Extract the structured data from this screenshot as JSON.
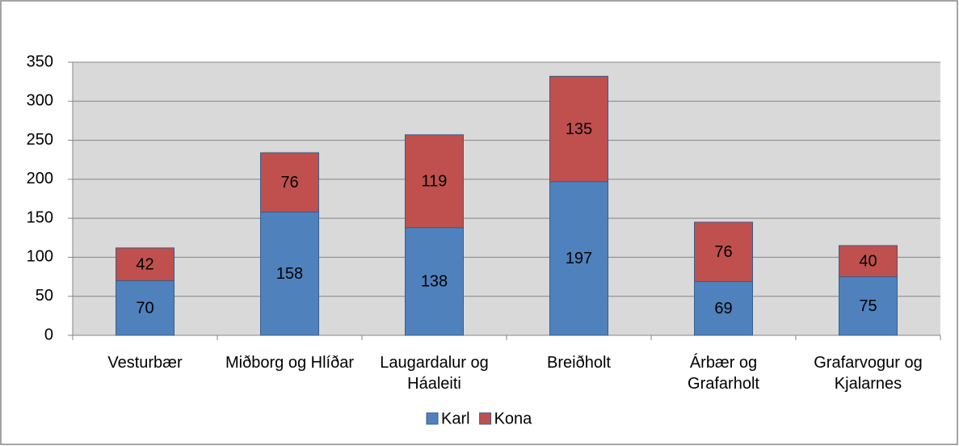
{
  "chart_data": {
    "type": "stacked_bar",
    "categories": [
      "Vesturbær",
      "Miðborg og Hlíðar",
      "Laugardalur og Háaleiti",
      "Breiðholt",
      "Árbær og Grafarholt",
      "Grafarvogur og Kjalarnes"
    ],
    "series": [
      {
        "name": "Karl",
        "color": "#4f81bd",
        "values": [
          70,
          158,
          138,
          197,
          69,
          75
        ]
      },
      {
        "name": "Kona",
        "color": "#c0504d",
        "values": [
          42,
          76,
          119,
          135,
          76,
          40
        ]
      }
    ],
    "ylim": [
      0,
      350
    ],
    "yticks": [
      0,
      50,
      100,
      150,
      200,
      250,
      300,
      350
    ],
    "grid": true,
    "legend": "bottom"
  }
}
